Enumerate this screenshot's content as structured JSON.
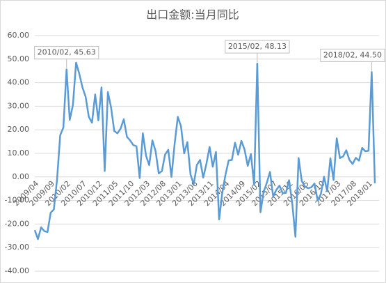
{
  "chart_data": {
    "type": "line",
    "title": "出口金额:当月同比",
    "categories": [
      "2009/04",
      null,
      null,
      null,
      null,
      "2009/09",
      null,
      null,
      null,
      null,
      "2010/02",
      null,
      null,
      null,
      null,
      "2010/07",
      null,
      null,
      null,
      null,
      "2010/12",
      null,
      null,
      null,
      null,
      "2011/05",
      null,
      null,
      null,
      null,
      "2011/10",
      null,
      null,
      null,
      null,
      "2012/03",
      null,
      null,
      null,
      null,
      "2012/08",
      null,
      null,
      null,
      null,
      "2013/01",
      null,
      null,
      null,
      null,
      "2013/06",
      null,
      null,
      null,
      null,
      "2013/11",
      null,
      null,
      null,
      null,
      "2014/04",
      null,
      null,
      null,
      null,
      "2014/09",
      null,
      null,
      null,
      null,
      "2015/02",
      null,
      null,
      null,
      null,
      "2015/07",
      null,
      null,
      null,
      null,
      "2015/12",
      null,
      null,
      null,
      null,
      "2016/05",
      null,
      null,
      null,
      null,
      "2016/10",
      null,
      null,
      null,
      null,
      "2017/03",
      null,
      null,
      null,
      null,
      "2017/08",
      null,
      null,
      null,
      null,
      "2018/01",
      null,
      null
    ],
    "values": [
      -22.6,
      -26.4,
      -21.4,
      -23,
      -23.4,
      -15.2,
      -13.8,
      -1.2,
      17.7,
      21,
      45.63,
      24.2,
      30.5,
      48.5,
      43.8,
      38,
      34,
      25.5,
      23,
      35,
      24,
      38,
      2.5,
      36,
      29.5,
      19.5,
      18.5,
      20.5,
      24.5,
      17,
      15.5,
      13.5,
      13,
      -0.5,
      18.5,
      9,
      5,
      15.5,
      11,
      1.5,
      2.5,
      9.5,
      11.5,
      0,
      14,
      25.5,
      21.5,
      10,
      14.8,
      1,
      -3.1,
      5.1,
      7.2,
      -0.3,
      5.6,
      12.7,
      4.3,
      10.6,
      -18.1,
      -6.6,
      0.9,
      7,
      7.2,
      14.5,
      9.4,
      15.3,
      11.6,
      4.7,
      9.7,
      -3.3,
      48.13,
      -15,
      -6.4,
      -2.5,
      2.1,
      -8.3,
      -5.5,
      -3.7,
      -6.9,
      -6.8,
      -1.4,
      -11.2,
      -25.4,
      8,
      -1.8,
      -4.1,
      -4.8,
      -4.4,
      -2.8,
      -10,
      -7.3,
      0.1,
      -6.1,
      7.9,
      -1.3,
      16.4,
      8,
      8.7,
      11.3,
      7.2,
      5.5,
      8.1,
      6.9,
      12.3,
      10.9,
      11.1,
      44.5,
      -2.7
    ],
    "color": "#5b9bd5",
    "ylim": [
      -40,
      60
    ],
    "yticks": [
      {
        "value": -40,
        "label": "-40.00"
      },
      {
        "value": -30,
        "label": "-30.00"
      },
      {
        "value": -20,
        "label": "-20.00"
      },
      {
        "value": -10,
        "label": "-10.00"
      },
      {
        "value": 0,
        "label": "0.00"
      },
      {
        "value": 10,
        "label": "10.00"
      },
      {
        "value": 20,
        "label": "20.00"
      },
      {
        "value": 30,
        "label": "30.00"
      },
      {
        "value": 40,
        "label": "40.00"
      },
      {
        "value": 50,
        "label": "50.00"
      },
      {
        "value": 60,
        "label": "60.00"
      }
    ],
    "grid": true,
    "annotations": [
      {
        "x": "2010/02",
        "y": 45.63,
        "label": "2010/02, 45.63"
      },
      {
        "x": "2015/02",
        "y": 48.13,
        "label": "2015/02, 48.13"
      },
      {
        "x": "2018/02",
        "y": 44.5,
        "label": "2018/02, 44.50"
      }
    ]
  }
}
